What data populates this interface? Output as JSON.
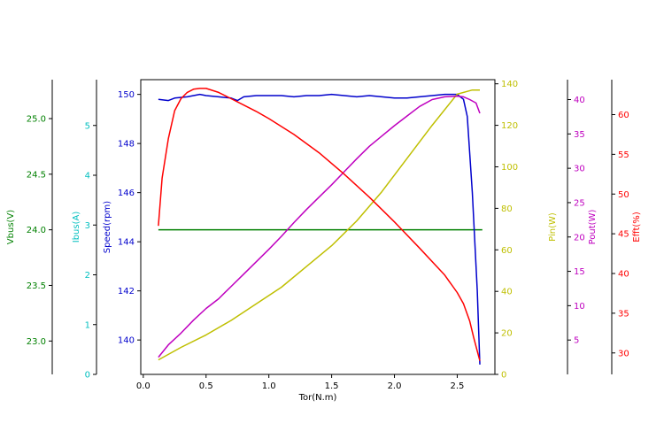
{
  "chart_data": {
    "type": "line",
    "xlabel": "Tor(N.m)",
    "xlim": [
      -0.02,
      2.8
    ],
    "xticks": [
      0.0,
      0.5,
      1.0,
      1.5,
      2.0,
      2.5
    ],
    "xtick_labels": [
      "0.0",
      "0.5",
      "1.0",
      "1.5",
      "2.0",
      "2.5"
    ],
    "grid": false,
    "axes": {
      "vbus": {
        "label": "Vbus(V)",
        "color": "#008000",
        "ylim": [
          22.7,
          25.35
        ],
        "ticks": [
          23.0,
          23.5,
          24.0,
          24.5,
          25.0
        ],
        "tick_labels": [
          "23.0",
          "23.5",
          "24.0",
          "24.5",
          "25.0"
        ]
      },
      "ibus": {
        "label": "Ibus(A)",
        "color": "#00bfbf",
        "ylim": [
          0,
          5.92
        ],
        "ticks": [
          0,
          1,
          2,
          3,
          4,
          5
        ],
        "tick_labels": [
          "0",
          "1",
          "2",
          "3",
          "4",
          "5"
        ]
      },
      "speed": {
        "label": "Speed(rpm)",
        "color": "#0000cc",
        "ylim": [
          138.6,
          150.6
        ],
        "ticks": [
          140,
          142,
          144,
          146,
          148,
          150
        ],
        "tick_labels": [
          "140",
          "142",
          "144",
          "146",
          "148",
          "150"
        ]
      },
      "pin": {
        "label": "Pin(W)",
        "color": "#bfbf00",
        "ylim": [
          0,
          142
        ],
        "ticks": [
          0,
          20,
          40,
          60,
          80,
          100,
          120,
          140
        ],
        "tick_labels": [
          "0",
          "20",
          "40",
          "60",
          "80",
          "100",
          "120",
          "140"
        ]
      },
      "pout": {
        "label": "Pout(W)",
        "color": "#bf00bf",
        "ylim": [
          0,
          42.9
        ],
        "ticks": [
          5,
          10,
          15,
          20,
          25,
          30,
          35,
          40
        ],
        "tick_labels": [
          "5",
          "10",
          "15",
          "20",
          "25",
          "30",
          "35",
          "40"
        ]
      },
      "eff": {
        "label": "Efft(%)",
        "color": "#ff0000",
        "ylim": [
          27.3,
          64.4
        ],
        "ticks": [
          30,
          35,
          40,
          45,
          50,
          55,
          60
        ],
        "tick_labels": [
          "30",
          "35",
          "40",
          "45",
          "50",
          "55",
          "60"
        ]
      }
    },
    "series": [
      {
        "key": "vbus",
        "color": "#008000",
        "x": [
          0.12,
          2.7
        ],
        "y": [
          24.0,
          24.0
        ]
      },
      {
        "key": "speed",
        "color": "#0000cc",
        "x": [
          0.12,
          0.2,
          0.25,
          0.35,
          0.45,
          0.5,
          0.6,
          0.7,
          0.75,
          0.8,
          0.9,
          1.0,
          1.1,
          1.2,
          1.3,
          1.4,
          1.5,
          1.6,
          1.7,
          1.8,
          1.9,
          2.0,
          2.1,
          2.2,
          2.3,
          2.4,
          2.5,
          2.55,
          2.58,
          2.62,
          2.66,
          2.68
        ],
        "y": [
          149.8,
          149.75,
          149.85,
          149.9,
          150.0,
          149.95,
          149.9,
          149.85,
          149.75,
          149.9,
          149.95,
          149.95,
          149.95,
          149.9,
          149.95,
          149.95,
          150.0,
          149.95,
          149.9,
          149.95,
          149.9,
          149.85,
          149.85,
          149.9,
          149.95,
          150.0,
          150.0,
          149.8,
          149.1,
          146.0,
          142.0,
          139.0
        ]
      },
      {
        "key": "pin",
        "color": "#bfbf00",
        "x": [
          0.12,
          0.3,
          0.5,
          0.7,
          0.9,
          1.1,
          1.3,
          1.5,
          1.7,
          1.9,
          2.1,
          2.3,
          2.5,
          2.62,
          2.68
        ],
        "y": [
          7,
          13,
          19,
          26,
          34,
          42,
          52,
          62,
          74,
          88,
          104,
          120,
          135,
          137,
          137
        ]
      },
      {
        "key": "pout",
        "color": "#bf00bf",
        "x": [
          0.12,
          0.2,
          0.3,
          0.4,
          0.5,
          0.6,
          0.7,
          0.8,
          0.9,
          1.0,
          1.1,
          1.2,
          1.3,
          1.4,
          1.5,
          1.6,
          1.7,
          1.8,
          1.9,
          2.0,
          2.1,
          2.2,
          2.3,
          2.4,
          2.5,
          2.55,
          2.6,
          2.65,
          2.68
        ],
        "y": [
          2.5,
          4.3,
          6.0,
          7.9,
          9.6,
          11.0,
          12.8,
          14.6,
          16.4,
          18.2,
          20.1,
          22.1,
          24.0,
          25.8,
          27.6,
          29.5,
          31.4,
          33.2,
          34.7,
          36.2,
          37.6,
          39.0,
          40.0,
          40.4,
          40.5,
          40.4,
          40.0,
          39.5,
          38.0
        ]
      },
      {
        "key": "eff",
        "color": "#ff0000",
        "x": [
          0.12,
          0.15,
          0.2,
          0.25,
          0.3,
          0.35,
          0.4,
          0.45,
          0.5,
          0.6,
          0.7,
          0.8,
          0.9,
          1.0,
          1.2,
          1.4,
          1.6,
          1.8,
          2.0,
          2.2,
          2.4,
          2.5,
          2.55,
          2.6,
          2.63,
          2.68
        ],
        "y": [
          46.0,
          52.0,
          57.0,
          60.5,
          62.0,
          62.8,
          63.2,
          63.3,
          63.3,
          62.8,
          62.0,
          61.2,
          60.4,
          59.5,
          57.5,
          55.2,
          52.5,
          49.6,
          46.5,
          43.2,
          39.8,
          37.6,
          36.2,
          34.0,
          32.0,
          29.0
        ]
      }
    ]
  }
}
